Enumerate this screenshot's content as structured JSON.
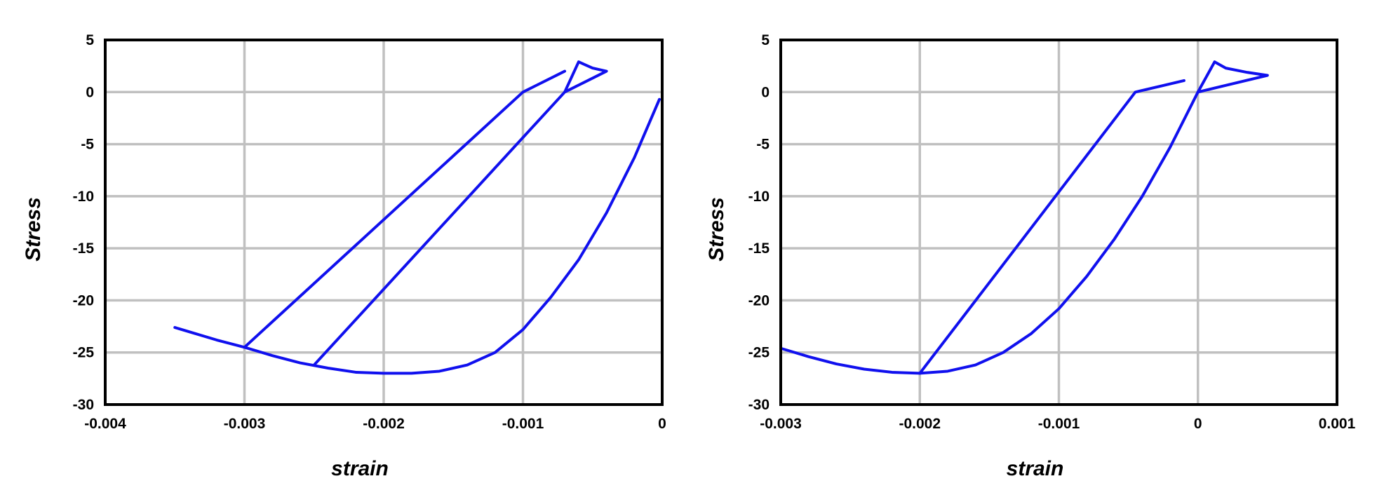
{
  "colors": {
    "series": "#1010ee",
    "grid": "#c0c0c0",
    "frame": "#000000"
  },
  "chart_data": [
    {
      "type": "line",
      "xlabel": "strain",
      "ylabel": "Stress",
      "xlim": [
        -0.004,
        0
      ],
      "ylim": [
        -30,
        5
      ],
      "xticks": [
        -0.004,
        -0.003,
        -0.002,
        -0.001,
        0
      ],
      "xtick_labels": [
        "-0.004",
        "-0.003",
        "-0.002",
        "-0.001",
        "0"
      ],
      "yticks": [
        5,
        0,
        -5,
        -10,
        -15,
        -20,
        -25,
        -30
      ],
      "ytick_labels": [
        "5",
        "0",
        "-5",
        "-10",
        "-15",
        "-20",
        "-25",
        "-30"
      ],
      "grid": true,
      "series": [
        {
          "x": [
            -2e-05,
            -0.0002,
            -0.0004,
            -0.0006,
            -0.0008,
            -0.001,
            -0.0012,
            -0.0014,
            -0.0016,
            -0.0018,
            -0.002,
            -0.0022,
            -0.0024,
            -0.0026,
            -0.0028,
            -0.003,
            -0.0032,
            -0.0035
          ],
          "y": [
            -0.7,
            -6.3,
            -11.6,
            -16.1,
            -19.7,
            -22.8,
            -25.0,
            -26.2,
            -26.8,
            -27.0,
            -27.0,
            -26.9,
            -26.5,
            -26.0,
            -25.3,
            -24.5,
            -23.8,
            -22.6
          ]
        },
        {
          "x": [
            -0.003,
            -0.001,
            -0.0007
          ],
          "y": [
            -24.5,
            0.0,
            2.0
          ]
        },
        {
          "x": [
            -0.0025,
            -0.0007,
            -0.0006,
            -0.00055,
            -0.0005,
            -0.0004,
            -0.0007
          ],
          "y": [
            -26.2,
            0.0,
            2.9,
            2.6,
            2.3,
            2.0,
            0.0
          ]
        }
      ]
    },
    {
      "type": "line",
      "xlabel": "strain",
      "ylabel": "Stress",
      "xlim": [
        -0.003,
        0.001
      ],
      "ylim": [
        -30,
        5
      ],
      "xticks": [
        -0.003,
        -0.002,
        -0.001,
        0,
        0.001
      ],
      "xtick_labels": [
        "-0.003",
        "-0.002",
        "-0.001",
        "0",
        "0.001"
      ],
      "yticks": [
        5,
        0,
        -5,
        -10,
        -15,
        -20,
        -25,
        -30
      ],
      "ytick_labels": [
        "5",
        "0",
        "-5",
        "-10",
        "-15",
        "-20",
        "-25",
        "-30"
      ],
      "grid": true,
      "series": [
        {
          "x": [
            -0.003,
            -0.0028,
            -0.0026,
            -0.0024,
            -0.0022,
            -0.002,
            -0.0018,
            -0.0016,
            -0.0014,
            -0.0012,
            -0.001,
            -0.0008,
            -0.0006,
            -0.0004,
            -0.0002,
            0.0
          ],
          "y": [
            -24.6,
            -25.4,
            -26.1,
            -26.6,
            -26.9,
            -27.0,
            -26.8,
            -26.2,
            -25.0,
            -23.2,
            -20.8,
            -17.7,
            -14.1,
            -10.0,
            -5.3,
            0.0
          ]
        },
        {
          "x": [
            -0.002,
            -0.00045,
            -0.0001
          ],
          "y": [
            -27.0,
            0.0,
            1.1
          ]
        },
        {
          "x": [
            0.0,
            0.00012,
            0.0002,
            0.00035,
            0.0005,
            0.0
          ],
          "y": [
            0.0,
            2.9,
            2.3,
            1.9,
            1.6,
            0.0
          ]
        }
      ]
    }
  ]
}
